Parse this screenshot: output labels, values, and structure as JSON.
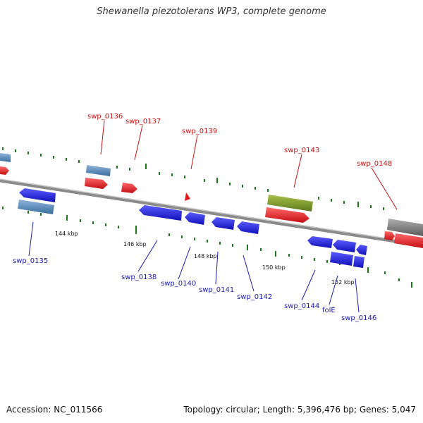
{
  "title": "Shewanella piezotolerans WP3, complete genome",
  "footer": {
    "accession": "Accession: NC_011566",
    "summary": "Topology: circular; Length: 5,396,476 bp; Genes: 5,047"
  },
  "colors": {
    "forward_gene": "#e8141b",
    "reverse_gene": "#1d1ef0",
    "forward_label": "#cc1111",
    "reverse_label": "#1a1ab3",
    "backbone": "#8a8a8a",
    "tick": "#1a7a1a",
    "rna_like": "#4f86b9",
    "highlight": "#7a9a2a",
    "other": "#808080"
  },
  "scale": {
    "ticks": [
      "144 kbp",
      "146 kbp",
      "148 kbp",
      "150 kbp",
      "152 kbp"
    ]
  },
  "genes": {
    "forward": [
      "swp_0136",
      "swp_0137",
      "swp_0139",
      "swp_0143",
      "swp_0148"
    ],
    "reverse": [
      "swp_0135",
      "swp_0138",
      "swp_0140",
      "swp_0141",
      "swp_0142",
      "swp_0144",
      "folE",
      "swp_0146"
    ]
  }
}
